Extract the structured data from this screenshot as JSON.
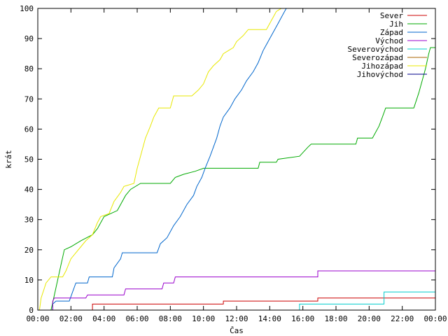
{
  "chart_data": {
    "type": "line",
    "title": "",
    "xlabel": "Čas",
    "ylabel": "krát",
    "xlim": [
      0,
      24
    ],
    "ylim": [
      0,
      100
    ],
    "x_ticks": [
      "00:00",
      "02:00",
      "04:00",
      "06:00",
      "08:00",
      "10:00",
      "12:00",
      "14:00",
      "16:00",
      "18:00",
      "20:00",
      "22:00",
      "00:00"
    ],
    "y_ticks": [
      0,
      10,
      20,
      30,
      40,
      50,
      60,
      70,
      80,
      90,
      100
    ],
    "grid": false,
    "legend_position": "top-right",
    "series": [
      {
        "name": "Sever",
        "color": "#cc0000",
        "points": [
          [
            0,
            0
          ],
          [
            3.3,
            0
          ],
          [
            3.3,
            2
          ],
          [
            11.2,
            2
          ],
          [
            11.2,
            3
          ],
          [
            16.9,
            3
          ],
          [
            16.9,
            4
          ],
          [
            24,
            4
          ]
        ]
      },
      {
        "name": "Jih",
        "color": "#00aa00",
        "points": [
          [
            0,
            0
          ],
          [
            0.8,
            0
          ],
          [
            1.0,
            5
          ],
          [
            1.2,
            10
          ],
          [
            1.4,
            15
          ],
          [
            1.6,
            20
          ],
          [
            2.0,
            21
          ],
          [
            2.6,
            23
          ],
          [
            3.3,
            25
          ],
          [
            3.6,
            27
          ],
          [
            4.0,
            31
          ],
          [
            4.8,
            33
          ],
          [
            5.0,
            35
          ],
          [
            5.3,
            38
          ],
          [
            5.6,
            40
          ],
          [
            6.2,
            42
          ],
          [
            8.0,
            42
          ],
          [
            8.3,
            44
          ],
          [
            8.8,
            45
          ],
          [
            9.5,
            46
          ],
          [
            10.0,
            47
          ],
          [
            13.3,
            47
          ],
          [
            13.4,
            49
          ],
          [
            14.4,
            49
          ],
          [
            14.5,
            50
          ],
          [
            15.8,
            51
          ],
          [
            16.3,
            54
          ],
          [
            16.5,
            55
          ],
          [
            19.2,
            55
          ],
          [
            19.3,
            57
          ],
          [
            20.2,
            57
          ],
          [
            20.6,
            61
          ],
          [
            20.8,
            64
          ],
          [
            21.0,
            67
          ],
          [
            22.7,
            67
          ],
          [
            23.0,
            72
          ],
          [
            23.4,
            80
          ],
          [
            23.6,
            85
          ],
          [
            23.7,
            87
          ],
          [
            24,
            87
          ]
        ]
      },
      {
        "name": "Západ",
        "color": "#0066cc",
        "points": [
          [
            0,
            0
          ],
          [
            0.9,
            0
          ],
          [
            0.9,
            2
          ],
          [
            1.1,
            3
          ],
          [
            1.9,
            3
          ],
          [
            2.1,
            6
          ],
          [
            2.3,
            9
          ],
          [
            3.0,
            9
          ],
          [
            3.1,
            11
          ],
          [
            4.5,
            11
          ],
          [
            4.6,
            14
          ],
          [
            5.0,
            17
          ],
          [
            5.1,
            19
          ],
          [
            7.2,
            19
          ],
          [
            7.4,
            22
          ],
          [
            7.8,
            24
          ],
          [
            8.2,
            28
          ],
          [
            8.6,
            31
          ],
          [
            9.0,
            35
          ],
          [
            9.4,
            38
          ],
          [
            9.6,
            41
          ],
          [
            9.9,
            44
          ],
          [
            10.1,
            47
          ],
          [
            10.4,
            51
          ],
          [
            10.8,
            57
          ],
          [
            11.0,
            61
          ],
          [
            11.2,
            64
          ],
          [
            11.6,
            67
          ],
          [
            11.9,
            70
          ],
          [
            12.3,
            73
          ],
          [
            12.6,
            76
          ],
          [
            13.0,
            79
          ],
          [
            13.3,
            82
          ],
          [
            13.6,
            86
          ],
          [
            13.9,
            89
          ],
          [
            14.2,
            92
          ],
          [
            14.5,
            95
          ],
          [
            14.7,
            97
          ],
          [
            14.9,
            99
          ],
          [
            15.0,
            100
          ]
        ]
      },
      {
        "name": "Východ",
        "color": "#9900cc",
        "points": [
          [
            0,
            0
          ],
          [
            0.9,
            0
          ],
          [
            0.9,
            3
          ],
          [
            1.0,
            4
          ],
          [
            2.9,
            4
          ],
          [
            3.0,
            5
          ],
          [
            5.2,
            5
          ],
          [
            5.3,
            7
          ],
          [
            7.5,
            7
          ],
          [
            7.6,
            9
          ],
          [
            8.2,
            9
          ],
          [
            8.3,
            11
          ],
          [
            16.9,
            11
          ],
          [
            16.9,
            13
          ],
          [
            24,
            13
          ]
        ]
      },
      {
        "name": "Severovýchod",
        "color": "#00cccc",
        "points": [
          [
            0,
            0
          ],
          [
            15.8,
            0
          ],
          [
            15.8,
            2
          ],
          [
            20.9,
            2
          ],
          [
            20.9,
            6
          ],
          [
            24,
            6
          ]
        ]
      },
      {
        "name": "Severozápad",
        "color": "#aa6600",
        "points": []
      },
      {
        "name": "Jihozápad",
        "color": "#e8e800",
        "points": [
          [
            0,
            0
          ],
          [
            0.1,
            0
          ],
          [
            0.2,
            4
          ],
          [
            0.5,
            9
          ],
          [
            0.8,
            11
          ],
          [
            1.5,
            11
          ],
          [
            1.7,
            13
          ],
          [
            2.0,
            17
          ],
          [
            2.3,
            19
          ],
          [
            2.6,
            21
          ],
          [
            2.9,
            23
          ],
          [
            3.3,
            25
          ],
          [
            3.6,
            29
          ],
          [
            3.8,
            31
          ],
          [
            4.3,
            32
          ],
          [
            4.6,
            36
          ],
          [
            5.0,
            39
          ],
          [
            5.2,
            41
          ],
          [
            5.8,
            42
          ],
          [
            6.0,
            47
          ],
          [
            6.2,
            51
          ],
          [
            6.5,
            57
          ],
          [
            6.8,
            61
          ],
          [
            7.0,
            64
          ],
          [
            7.3,
            67
          ],
          [
            8.0,
            67
          ],
          [
            8.2,
            71
          ],
          [
            9.3,
            71
          ],
          [
            9.7,
            73
          ],
          [
            10.0,
            75
          ],
          [
            10.3,
            79
          ],
          [
            10.6,
            81
          ],
          [
            11.0,
            83
          ],
          [
            11.2,
            85
          ],
          [
            11.5,
            86
          ],
          [
            11.8,
            87
          ],
          [
            12.0,
            89
          ],
          [
            12.4,
            91
          ],
          [
            12.7,
            93
          ],
          [
            13.8,
            93
          ],
          [
            14.0,
            95
          ],
          [
            14.2,
            97
          ],
          [
            14.4,
            99
          ],
          [
            14.7,
            100
          ],
          [
            15.0,
            100
          ]
        ]
      },
      {
        "name": "Jihovýchod",
        "color": "#000088",
        "points": []
      }
    ]
  }
}
